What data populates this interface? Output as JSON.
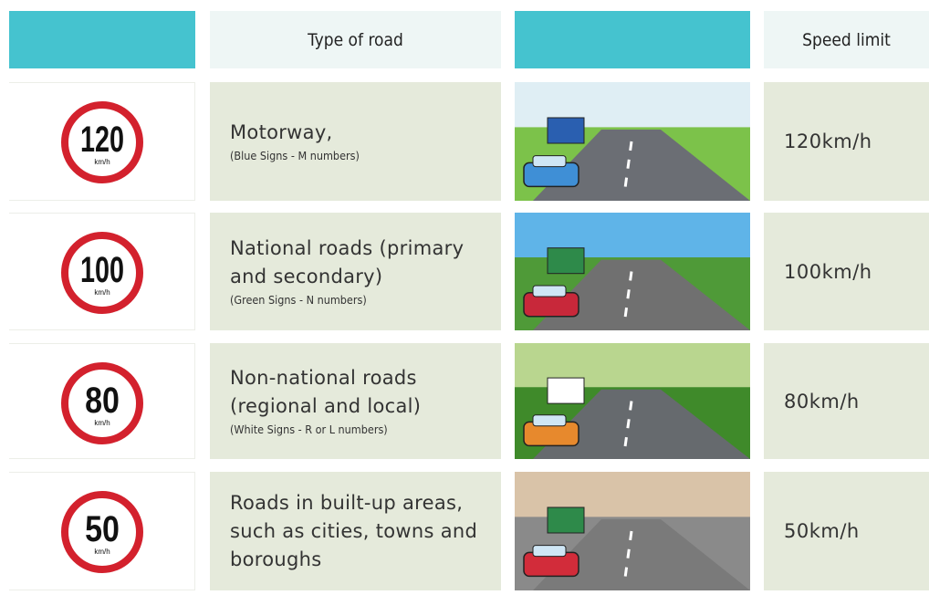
{
  "table": {
    "header": {
      "type_of_road": "Type of road",
      "speed_limit": "Speed limit"
    },
    "rows": [
      {
        "sign": "120",
        "sign_unit": "km/h",
        "road": "Motorway,",
        "note": "(Blue Signs - M numbers)",
        "speed": "120km/h"
      },
      {
        "sign": "100",
        "sign_unit": "km/h",
        "road": "National roads (primary and secondary)",
        "note": "(Green Signs - N numbers)",
        "speed": "100km/h"
      },
      {
        "sign": "80",
        "sign_unit": "km/h",
        "road": "Non-national roads (regional and local)",
        "note": "(White Signs - R or L numbers)",
        "speed": "80km/h"
      },
      {
        "sign": "50",
        "sign_unit": "km/h",
        "road": "Roads in built-up areas, such as cities, towns and boroughs",
        "speed": "50km/h"
      }
    ]
  }
}
